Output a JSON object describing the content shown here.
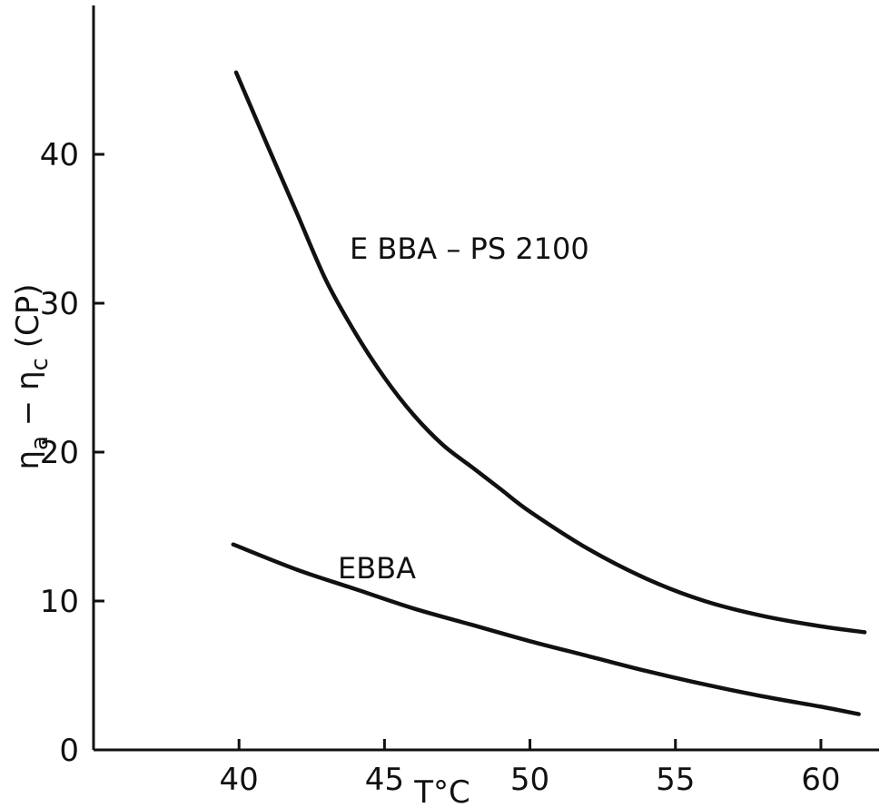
{
  "chart_data": {
    "type": "line",
    "xlabel": "T°C",
    "ylabel": "η_a − η_c (CP)",
    "ylabel_parts": {
      "eta1": "η",
      "sub1": "a",
      "minus": " − ",
      "eta2": "η",
      "sub2": "c",
      "unit": " (CP)"
    },
    "xlim": [
      35,
      62
    ],
    "ylim": [
      0,
      50
    ],
    "xticks": [
      40,
      45,
      50,
      55,
      60
    ],
    "xtick_labels": [
      "40",
      "45",
      "50",
      "55",
      "60"
    ],
    "yticks": [
      0,
      10,
      20,
      30,
      40
    ],
    "ytick_labels": [
      "0",
      "10",
      "20",
      "30",
      "40"
    ],
    "grid": false,
    "legend": "none",
    "series": [
      {
        "name": "E BBA – PS 2100",
        "x": [
          39.9,
          41,
          42,
          43,
          44,
          45,
          46,
          47,
          48,
          49,
          50,
          52,
          54,
          56,
          58,
          60,
          61.5
        ],
        "values": [
          45.5,
          40.5,
          36,
          31.5,
          28,
          25,
          22.5,
          20.5,
          19,
          17.5,
          16,
          13.5,
          11.5,
          10,
          9,
          8.3,
          7.9
        ]
      },
      {
        "name": "EBBA",
        "x": [
          39.8,
          42,
          44,
          46,
          48,
          50,
          52,
          54,
          56,
          58,
          60,
          61.3
        ],
        "values": [
          13.8,
          12.1,
          10.8,
          9.5,
          8.4,
          7.3,
          6.3,
          5.3,
          4.4,
          3.6,
          2.9,
          2.4
        ]
      }
    ]
  }
}
